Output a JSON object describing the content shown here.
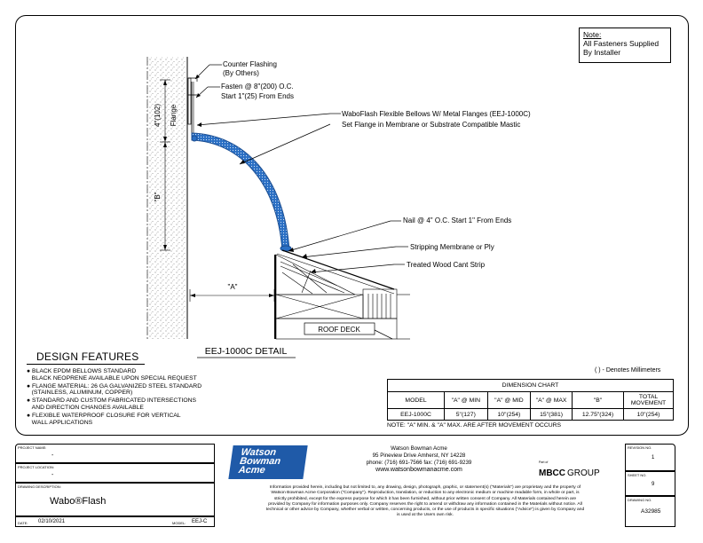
{
  "note": {
    "title": "Note:",
    "line1": "All Fasteners Supplied",
    "line2": "By Installer"
  },
  "callouts": {
    "counter_flashing": "Counter Flashing",
    "by_others": "(By Others)",
    "fasten": "Fasten @ 8\"(200) O.C.",
    "start": "Start 1\"(25) From Ends",
    "waboflash": "WaboFlash Flexible Bellows W/ Metal Flanges (EEJ-1000C)",
    "set_flange": "Set Flange in Membrane or Substrate Compatible Mastic",
    "nail": "Nail @ 4\" O.C. Start 1\" From Ends",
    "stripping": "Stripping Membrane or Ply",
    "cant_strip": "Treated Wood Cant Strip",
    "roof_deck": "ROOF DECK"
  },
  "dims": {
    "four_in": "4\"(102)",
    "flange": "Flange",
    "b": "\"B\"",
    "a": "\"A\""
  },
  "detail_title": "EEJ-1000C DETAIL",
  "design_features": {
    "heading": "DESIGN FEATURES",
    "items": [
      {
        "l1": "BLACK EPDM BELLOWS STANDARD",
        "l2": "BLACK NEOPRENE AVAILABLE UPON SPECIAL REQUEST"
      },
      {
        "l1": "FLANGE MATERIAL: 26 GA GALVANIZED STEEL STANDARD",
        "l2": "(STAINLESS, ALUMINUM, COPPER)"
      },
      {
        "l1": "STANDARD AND CUSTOM FABRICATED INTERSECTIONS",
        "l2": "AND DIRECTION CHANGES AVAILABLE"
      },
      {
        "l1": "FLEXIBLE WATERPROOF CLOSURE FOR VERTICAL",
        "l2": "WALL APPLICATIONS"
      }
    ]
  },
  "mm_note": "( ) - Denotes Millimeters",
  "chart": {
    "title": "DIMENSION CHART",
    "headers": [
      "MODEL",
      "\"A\" @ MIN",
      "\"A\" @ MID",
      "\"A\" @ MAX",
      "\"B\"",
      "TOTAL MOVEMENT"
    ],
    "row": [
      "EEJ-1000C",
      "5\"(127)",
      "10\"(254)",
      "15\"(381)",
      "12.75\"(324)",
      "10\"(254)"
    ],
    "note": "NOTE: \"A\" MIN. & \"A\" MAX. ARE AFTER MOVEMENT OCCURS"
  },
  "title_block": {
    "project_name_label": "PROJECT NAME:",
    "project_name": "-",
    "project_location_label": "PROJECT LOCATION:",
    "project_location": "-",
    "drawing_desc_label": "DRAWING DESCRIPTION:",
    "drawing_desc": "Wabo®Flash",
    "date_label": "DATE:",
    "date": "02/10/2021",
    "model_label": "MODEL:",
    "model": "EEJ-C",
    "logo": [
      "Watson",
      "Bowman",
      "Acme"
    ],
    "company": "Watson Bowman Acme",
    "address": "95 Pineview Drive Amherst, NY 14228",
    "phone": "phone: (716) 691-7566  fax: (716) 691-9239",
    "web": "www.watsonbowmanacme.com",
    "group_small": "Part of",
    "group": "MBCC",
    "group_suffix": "GROUP",
    "disclaimer1": "Information provided herein, including but not limited to, any drawing, design, photograph, graphic, or statement(s) (\"Materials\") are proprietary and the property of",
    "disclaimer2": "Watson Bowman Acme Corporation (\"Company\"). Reproduction, translation, or reduction to any electronic medium or machine readable form, in whole or part, is",
    "disclaimer3": "strictly prohibited, except for the express purpose for which it has been furnished, without prior written consent of Company. All Materials contained herein are",
    "disclaimer4": "provided by Company for information purposes only. Company reserves the right to amend or withdraw any information contained in the Materials without notice. All",
    "disclaimer5": "technical or other advice by Company, whether verbal or written, concerning products, or the use of products in specific situations (\"Advice\") is given by Company and",
    "disclaimer6": "is used at the Users own risk.",
    "revision_label": "REVISION NO.",
    "revision": "1",
    "sheet_label": "SHEET NO.",
    "sheet": "9",
    "drawing_no_label": "DRAWING NO.",
    "drawing_no": "A32985"
  },
  "colors": {
    "bellows": "#2a6fc4",
    "logo_bg": "#1f5aa8"
  }
}
